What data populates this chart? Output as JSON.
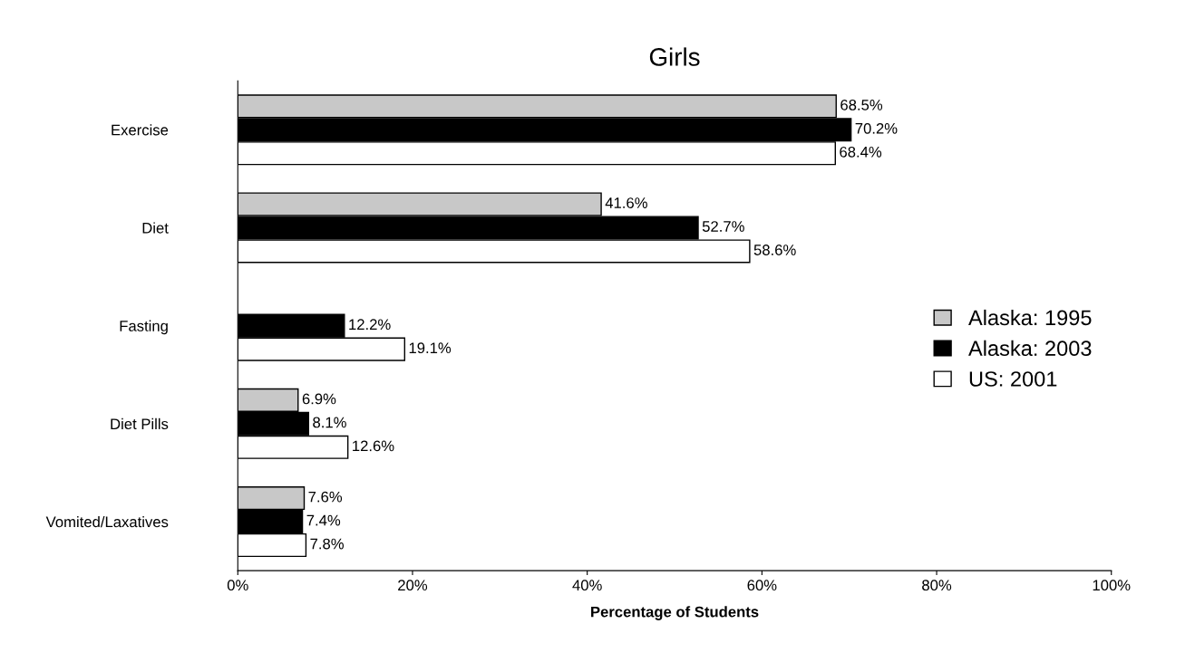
{
  "chart_data": {
    "type": "bar",
    "orientation": "horizontal",
    "title": "Girls",
    "xlabel": "Percentage of Students",
    "categories": [
      "Exercise",
      "Diet",
      "Fasting",
      "Diet Pills",
      "Vomited/Laxatives"
    ],
    "series": [
      {
        "name": "Alaska: 1995",
        "color": "#c8c8c8",
        "values": [
          68.5,
          41.6,
          null,
          6.9,
          7.6
        ],
        "value_labels": [
          "68.5%",
          "41.6%",
          null,
          "6.9%",
          "7.6%"
        ]
      },
      {
        "name": "Alaska: 2003",
        "color": "#000000",
        "values": [
          70.2,
          52.7,
          12.2,
          8.1,
          7.4
        ],
        "value_labels": [
          "70.2%",
          "52.7%",
          "12.2%",
          "8.1%",
          "7.4%"
        ]
      },
      {
        "name": "US: 2001",
        "color": "#ffffff",
        "values": [
          68.4,
          58.6,
          19.1,
          12.6,
          7.8
        ],
        "value_labels": [
          "68.4%",
          "58.6%",
          "19.1%",
          "12.6%",
          "7.8%"
        ]
      }
    ],
    "xlim": [
      0,
      100
    ],
    "xticks": [
      {
        "value": 0,
        "label": "0%"
      },
      {
        "value": 20,
        "label": "20%"
      },
      {
        "value": 40,
        "label": "40%"
      },
      {
        "value": 60,
        "label": "60%"
      },
      {
        "value": 80,
        "label": "80%"
      },
      {
        "value": 100,
        "label": "100%"
      }
    ],
    "grid": false,
    "legend": "right"
  }
}
